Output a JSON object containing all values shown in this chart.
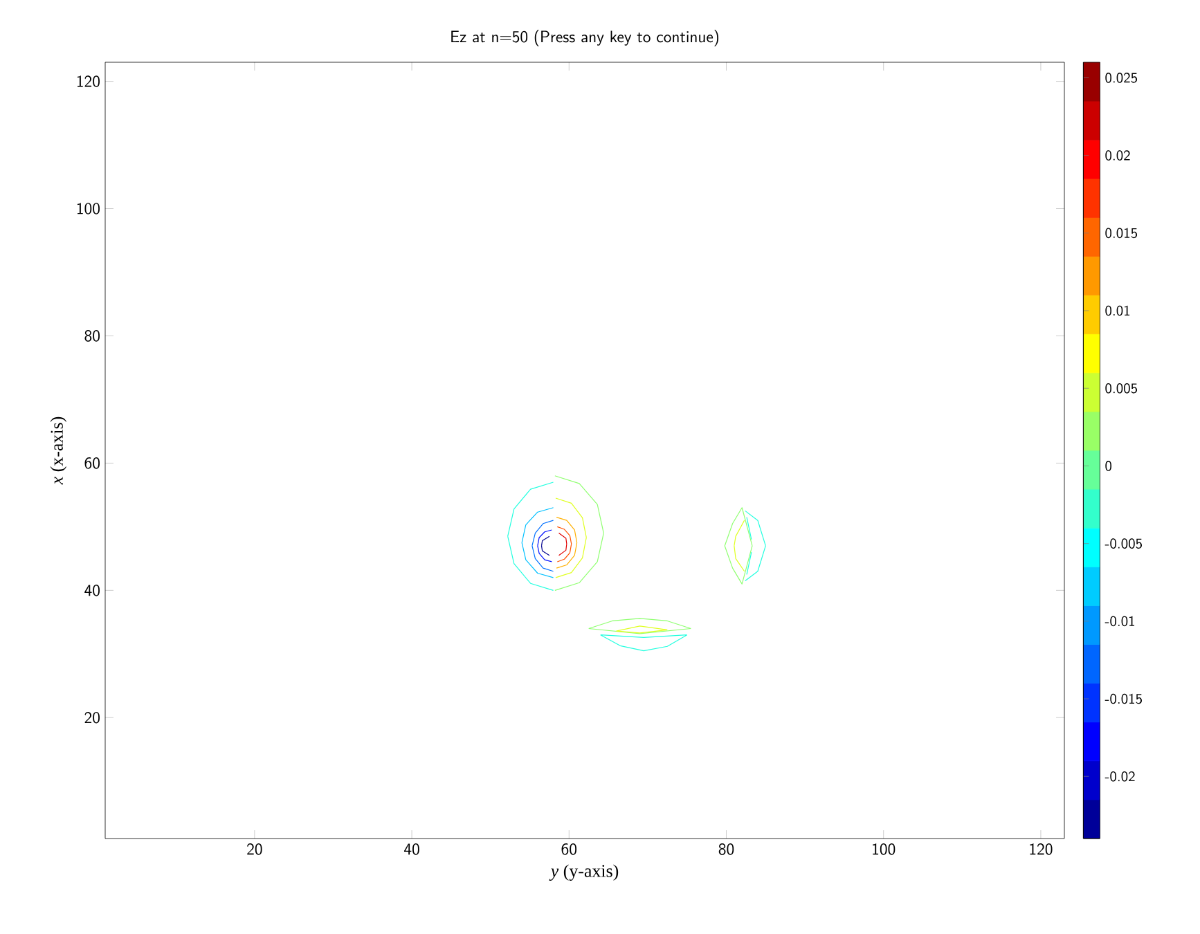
{
  "chart_data": {
    "type": "line",
    "title": "Ez at n=50  (Press any key to continue)",
    "xlabel": "*y* (y-axis)",
    "ylabel": "*x* (x-axis)",
    "xlim": [
      1,
      123
    ],
    "ylim": [
      1,
      123
    ],
    "xticks": [
      20,
      40,
      60,
      80,
      100,
      120
    ],
    "yticks": [
      20,
      40,
      60,
      80,
      100,
      120
    ],
    "clim": [
      -0.024,
      0.026
    ],
    "cticks": [
      -0.02,
      -0.015,
      -0.01,
      -0.005,
      0,
      0.005,
      0.01,
      0.015,
      0.02,
      0.025
    ],
    "series": [
      {
        "color": "#20ffdf",
        "x": [
          52.2,
          53.0,
          55.1,
          58,
          null,
          52.2,
          53.0,
          55.1,
          58
        ],
        "values": [
          48.5,
          52.8,
          55.9,
          57,
          null,
          48.5,
          44.2,
          41.1,
          40
        ]
      },
      {
        "color": "#00c0ff",
        "x": [
          54,
          54.5,
          56,
          58,
          null,
          54,
          54.5,
          56,
          58
        ],
        "values": [
          47.5,
          50.3,
          52.3,
          53,
          null,
          47.5,
          44.8,
          42.7,
          42
        ]
      },
      {
        "color": "#0070ff",
        "x": [
          55.3,
          55.7,
          56.7,
          58,
          null,
          55.3,
          55.7,
          56.7,
          58
        ],
        "values": [
          47,
          49,
          50.5,
          51,
          null,
          47,
          45,
          43.5,
          43
        ]
      },
      {
        "color": "#0010ff",
        "x": [
          56,
          56.2,
          56.9,
          57.8,
          null,
          56,
          56.2,
          56.9,
          57.8
        ],
        "values": [
          47,
          48.3,
          49.2,
          49.5,
          null,
          47,
          45.8,
          44.8,
          44.5
        ]
      },
      {
        "color": "#00008f",
        "x": [
          56.5,
          56.6,
          57.5,
          null,
          56.5,
          56.6,
          57.5
        ],
        "values": [
          47,
          47.8,
          48.5,
          null,
          47,
          46.2,
          45.5
        ]
      },
      {
        "color": "#8fff70",
        "x": [
          58.2,
          61.3,
          63.6,
          64.4,
          null,
          58.2,
          61.3,
          63.6,
          64.4
        ],
        "values": [
          58,
          56.8,
          53.5,
          49,
          null,
          40,
          41.2,
          44.5,
          49
        ]
      },
      {
        "color": "#e0ff20",
        "x": [
          58.3,
          60.3,
          61.7,
          62.2,
          null,
          58.3,
          60.3,
          61.7,
          62.2
        ],
        "values": [
          54.5,
          53.7,
          51.4,
          48.3,
          null,
          42,
          42.8,
          45.1,
          48.3
        ]
      },
      {
        "color": "#ffb000",
        "x": [
          58.4,
          59.7,
          60.7,
          61,
          null,
          58.4,
          59.7,
          60.7,
          61
        ],
        "values": [
          51.5,
          51,
          49.5,
          47.5,
          null,
          43.5,
          44,
          45.5,
          47.5
        ]
      },
      {
        "color": "#ff5000",
        "x": [
          58.5,
          59.4,
          60.1,
          60.3,
          null,
          58.5,
          59.4,
          60.1,
          60.3
        ],
        "values": [
          50,
          49.6,
          48.6,
          47.3,
          null,
          44.5,
          44.9,
          45.9,
          47.3
        ]
      },
      {
        "color": "#e00000",
        "x": [
          58.7,
          59.6,
          59.7,
          null,
          58.7,
          59.6,
          59.7
        ],
        "values": [
          49,
          48.2,
          47.3,
          null,
          45.5,
          46.3,
          47.3
        ]
      },
      {
        "color": "#8fff70",
        "x": [
          79.8,
          80.8,
          82,
          83.3,
          null,
          79.8,
          80.8,
          82,
          83.3
        ],
        "values": [
          47,
          50.5,
          53,
          47,
          null,
          47,
          43.5,
          41,
          47
        ]
      },
      {
        "color": "#e0ff20",
        "x": [
          81,
          81.2,
          82.3,
          null,
          81,
          81.2,
          82.3
        ],
        "values": [
          47,
          48.5,
          51,
          null,
          47,
          45,
          43
        ]
      },
      {
        "color": "#20ffdf",
        "x": [
          82.4,
          84,
          85,
          null,
          82.4,
          84,
          85
        ],
        "values": [
          52.5,
          51,
          47,
          null,
          41.5,
          43,
          47
        ]
      },
      {
        "color": "#20ffdf",
        "x": [
          82.6,
          83.2
        ],
        "values": [
          51.5,
          48
        ]
      },
      {
        "color": "#20ffdf",
        "x": [
          82.6,
          83.2
        ],
        "values": [
          42.5,
          46
        ]
      },
      {
        "color": "#8fff70",
        "x": [
          62.5,
          65.5,
          69,
          72.5,
          75.5,
          null,
          62.5,
          69,
          75.5
        ],
        "values": [
          34,
          35.2,
          35.6,
          35.2,
          34,
          null,
          34,
          33.2,
          34
        ]
      },
      {
        "color": "#e0ff20",
        "x": [
          66,
          69,
          72.5,
          null,
          66,
          69,
          72.5
        ],
        "values": [
          33.6,
          34.4,
          33.8,
          null,
          33.6,
          33.3,
          33.8
        ]
      },
      {
        "color": "#20ffdf",
        "x": [
          64,
          66.5,
          69.5,
          72.5,
          75,
          null,
          64,
          69.5,
          75
        ],
        "values": [
          33,
          31.3,
          30.5,
          31.2,
          33,
          null,
          33,
          32.6,
          33
        ]
      }
    ]
  }
}
